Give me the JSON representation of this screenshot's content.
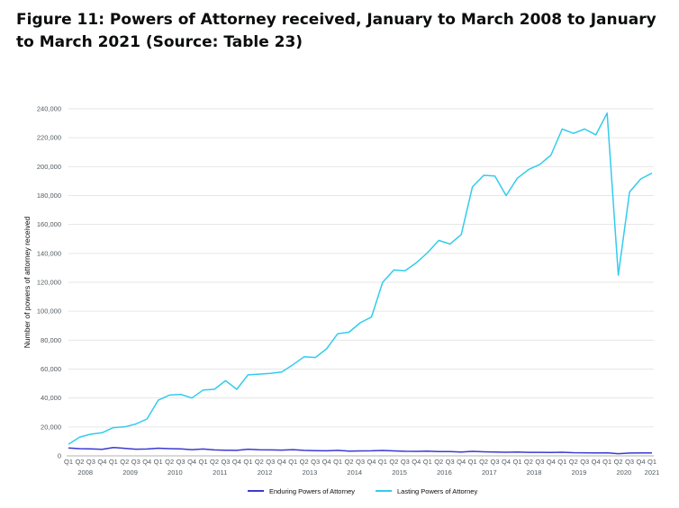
{
  "figure": {
    "title": "Figure 11: Powers of Attorney received, January to March 2008 to January to March 2021 (Source: Table 23)"
  },
  "chart_data": {
    "type": "line",
    "title": "Figure 11: Powers of Attorney received, January to March 2008 to January to March 2021 (Source: Table 23)",
    "xlabel": "",
    "ylabel": "Number of powers of attorney received",
    "ylim": [
      0,
      240000
    ],
    "yticks": [
      0,
      20000,
      40000,
      60000,
      80000,
      100000,
      120000,
      140000,
      160000,
      180000,
      200000,
      220000,
      240000
    ],
    "ytick_labels": [
      "0",
      "20,000",
      "40,000",
      "60,000",
      "80,000",
      "100,000",
      "120,000",
      "140,000",
      "160,000",
      "180,000",
      "200,000",
      "220,000",
      "240,000"
    ],
    "grid": true,
    "legend_position": "bottom",
    "quarters": [
      "Q1",
      "Q2",
      "Q3",
      "Q4",
      "Q1",
      "Q2",
      "Q3",
      "Q4",
      "Q1",
      "Q2",
      "Q3",
      "Q4",
      "Q1",
      "Q2",
      "Q3",
      "Q4",
      "Q1",
      "Q2",
      "Q3",
      "Q4",
      "Q1",
      "Q2",
      "Q3",
      "Q4",
      "Q1",
      "Q2",
      "Q3",
      "Q4",
      "Q1",
      "Q2",
      "Q3",
      "Q4",
      "Q1",
      "Q2",
      "Q3",
      "Q4",
      "Q1",
      "Q2",
      "Q3",
      "Q4",
      "Q1",
      "Q2",
      "Q3",
      "Q4",
      "Q1",
      "Q2",
      "Q3",
      "Q4",
      "Q1",
      "Q2",
      "Q3",
      "Q4",
      "Q1"
    ],
    "years": [
      "2008",
      "2009",
      "2010",
      "2011",
      "2012",
      "2013",
      "2014",
      "2015",
      "2016",
      "2017",
      "2018",
      "2019",
      "2020",
      "2021"
    ],
    "series": [
      {
        "name": "Enduring Powers of Attorney",
        "color": "#3b3ad1",
        "values": [
          5500,
          5000,
          4800,
          4500,
          5800,
          5200,
          4600,
          4700,
          5300,
          5000,
          4800,
          4300,
          4700,
          4100,
          3900,
          3800,
          4600,
          4200,
          4100,
          4000,
          4300,
          3800,
          3600,
          3500,
          3800,
          3300,
          3400,
          3500,
          3700,
          3400,
          3200,
          3100,
          3300,
          3000,
          2900,
          2700,
          3100,
          2800,
          2600,
          2500,
          2600,
          2400,
          2400,
          2300,
          2500,
          2200,
          2100,
          2000,
          2100,
          1500,
          1900,
          2000,
          2000
        ]
      },
      {
        "name": "Lasting Powers of Attorney",
        "color": "#33ccec",
        "values": [
          8000,
          13000,
          15000,
          16000,
          19500,
          20000,
          22000,
          25500,
          38500,
          42000,
          42500,
          40000,
          45500,
          46000,
          52000,
          46000,
          56000,
          56500,
          57000,
          58000,
          63000,
          68500,
          68000,
          74000,
          84500,
          85500,
          92000,
          96000,
          120000,
          128500,
          128000,
          133500,
          140500,
          149000,
          146500,
          153000,
          186000,
          194000,
          193500,
          180000,
          192000,
          198000,
          201500,
          208000,
          226000,
          223000,
          226000,
          222000,
          237000,
          125000,
          182500,
          191500,
          195500
        ]
      }
    ]
  }
}
